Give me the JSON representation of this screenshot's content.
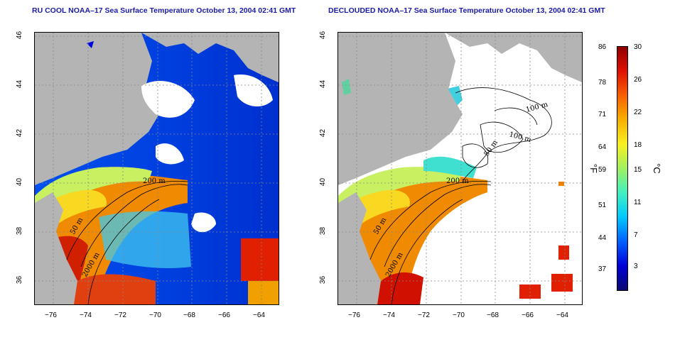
{
  "panels": [
    {
      "title": "RU COOL NOAA–17 Sea Surface Temperature October 13, 2004 02:41 GMT",
      "contour_labels": [
        "50 m",
        "200 m",
        "2000 m"
      ]
    },
    {
      "title": "DECLOUDED NOAA–17 Sea Surface Temperature October 13, 2004 02:41 GMT",
      "contour_labels": [
        "50 m",
        "200 m",
        "2000 m",
        "100 m",
        "100 m",
        "50 m"
      ]
    }
  ],
  "x_ticks": [
    "−76",
    "−74",
    "−72",
    "−70",
    "−68",
    "−66",
    "−64"
  ],
  "y_ticks": [
    "46",
    "44",
    "42",
    "40",
    "38",
    "36"
  ],
  "colorbar": {
    "fahrenheit_ticks": [
      "86",
      "78",
      "71",
      "64",
      "59",
      "51",
      "44",
      "37"
    ],
    "celsius_ticks": [
      "30",
      "26",
      "22",
      "18",
      "15",
      "11",
      "7",
      "3"
    ],
    "unit_f": "°F",
    "unit_c": "°C",
    "colors": [
      "#0a0a6e",
      "#0000d8",
      "#0060ff",
      "#00c8ff",
      "#40f0c0",
      "#a0f060",
      "#f8f020",
      "#f8b000",
      "#f86000",
      "#e01000",
      "#900000"
    ]
  },
  "colors": {
    "land": "#b4b4b4",
    "title": "#1a1aa8"
  }
}
